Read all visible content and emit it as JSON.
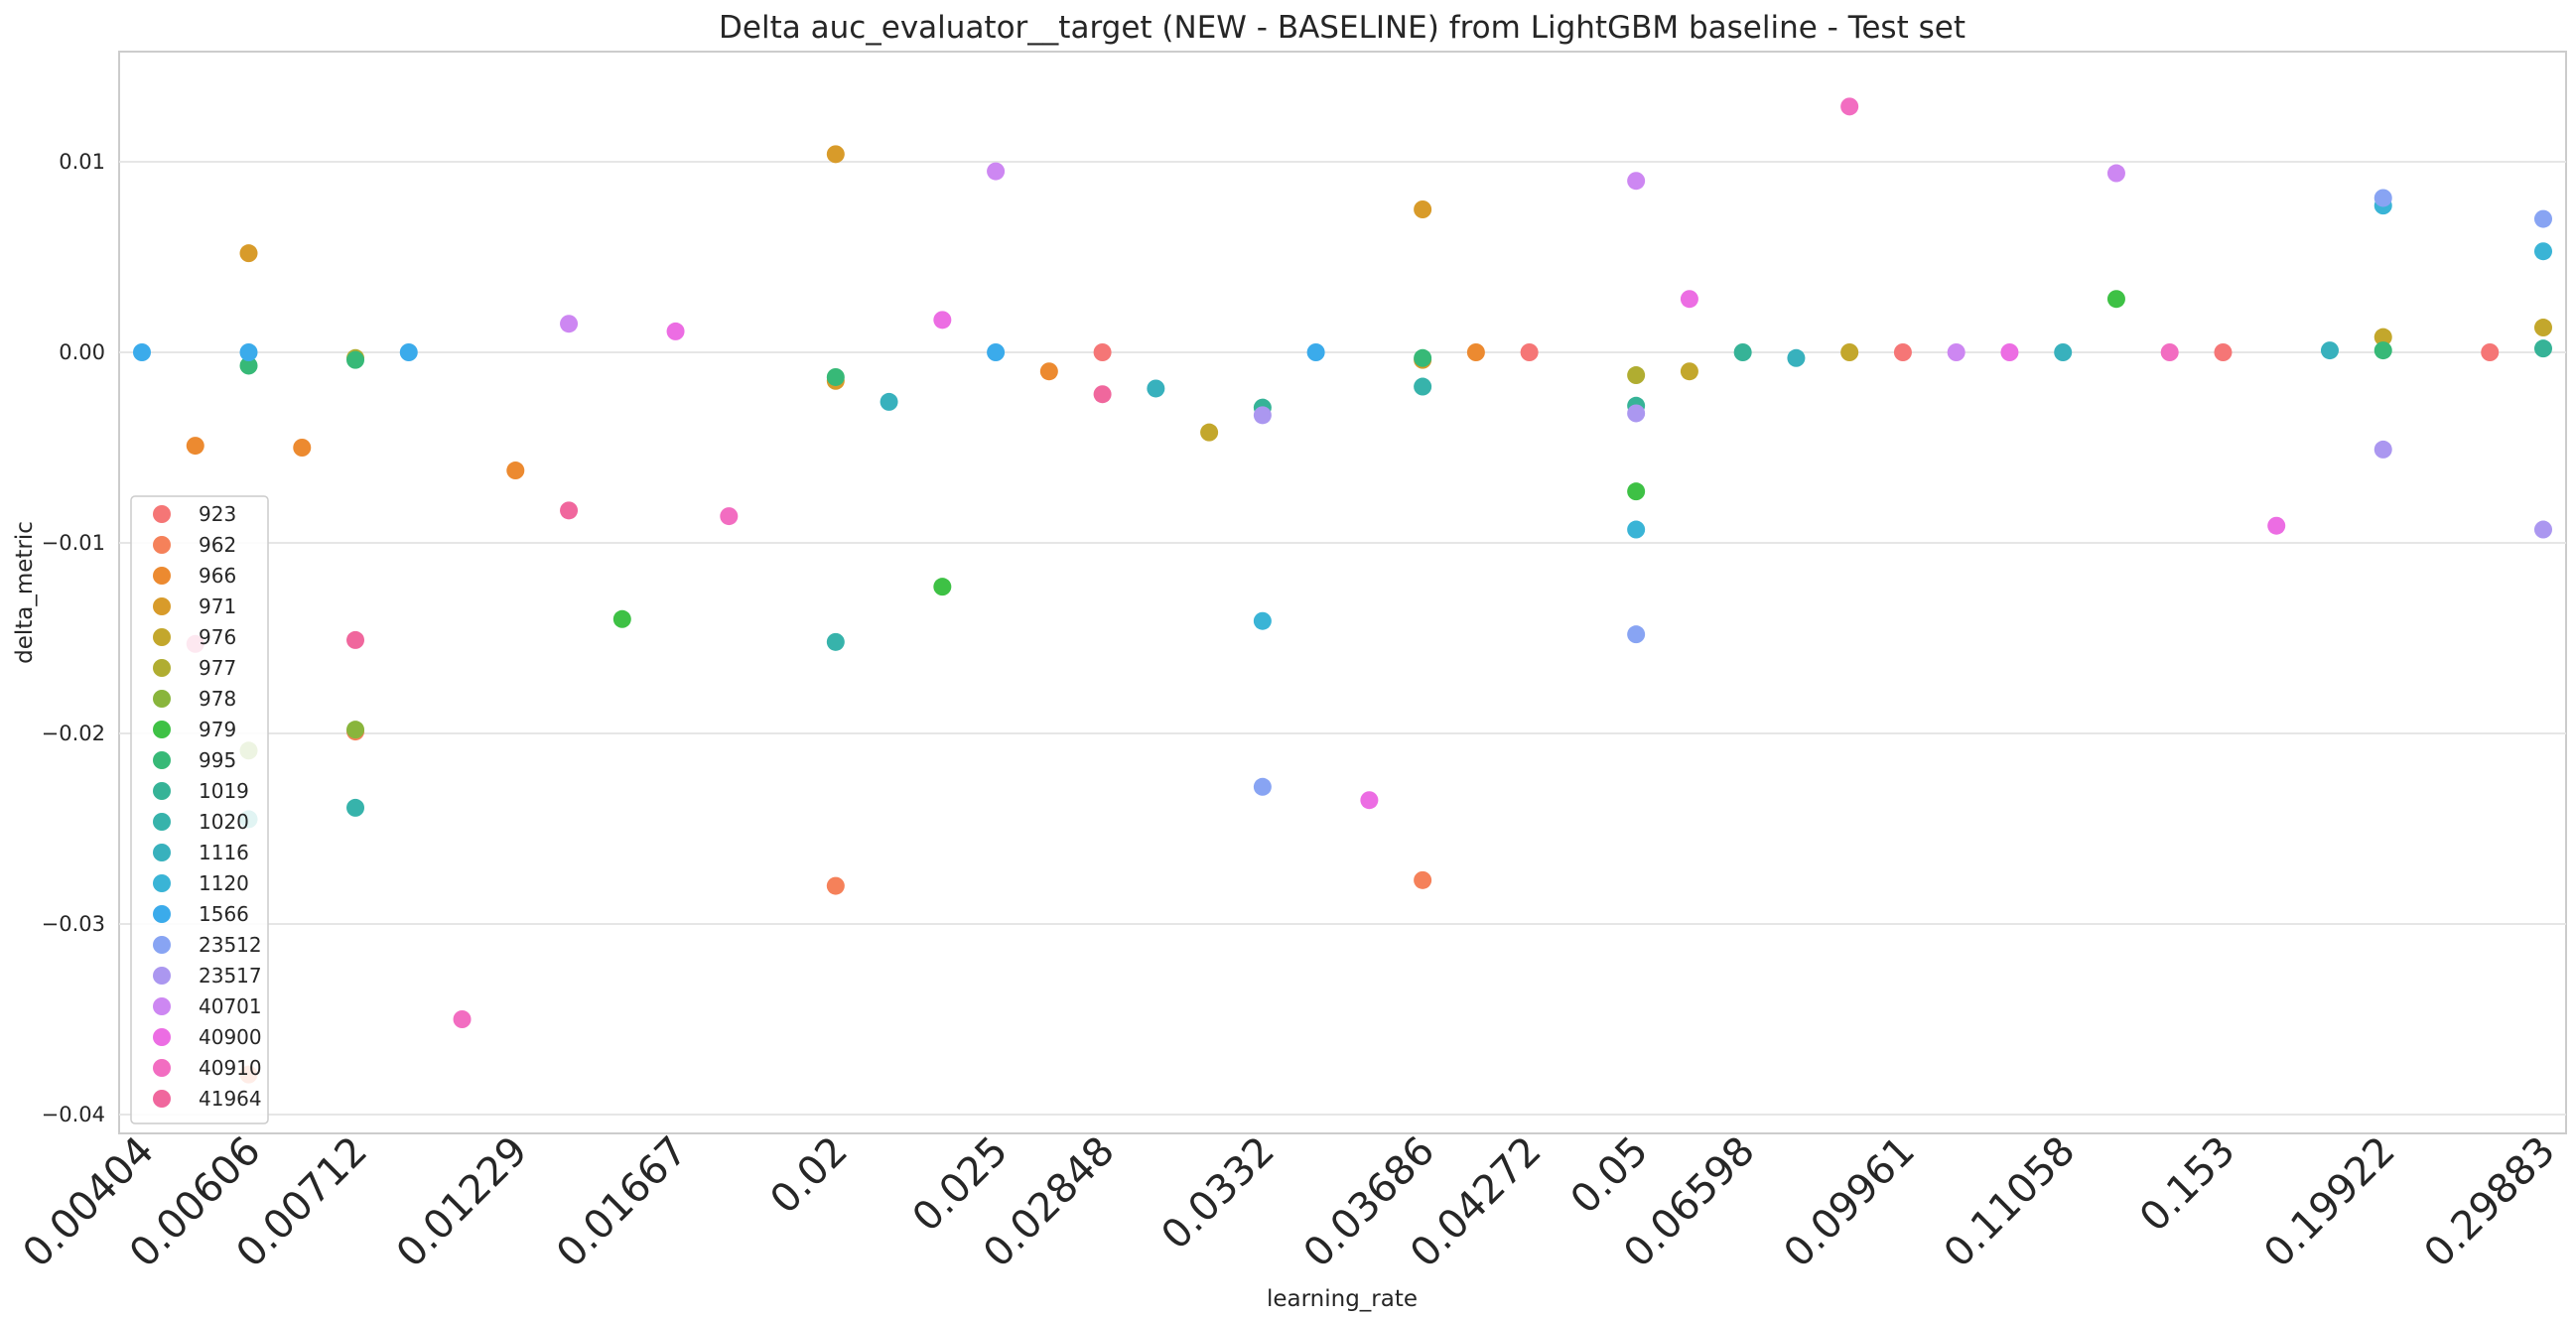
{
  "chart_data": {
    "type": "scatter",
    "title": "Delta auc_evaluator__target (NEW - BASELINE) from LightGBM baseline - Test set",
    "xlabel": "learning_rate",
    "ylabel": "delta_metric",
    "x_axis_kind": "categorical",
    "ylim": [
      -0.0408,
      0.0156
    ],
    "yticks": [
      -0.04,
      -0.03,
      -0.02,
      -0.01,
      0.0,
      0.01
    ],
    "ytick_labels": [
      "−0.04",
      "−0.03",
      "−0.02",
      "−0.01",
      "0.00",
      "0.01"
    ],
    "grid": "horizontal",
    "legend_placement": "lower-left",
    "x_tick_labels": [
      "0.00404",
      "0.00606",
      "0.00712",
      "0.01229",
      "0.01667",
      "0.02",
      "0.025",
      "0.02848",
      "0.0332",
      "0.03686",
      "0.04272",
      "0.05",
      "0.06598",
      "0.09961",
      "0.11058",
      "0.153",
      "0.19922",
      "0.29883"
    ],
    "x_categories": [
      "0.00404",
      "0.00505",
      "0.00606",
      "0.00656",
      "0.00712",
      "0.00800",
      "0.01000",
      "0.01229",
      "0.01400",
      "0.01550",
      "0.01667",
      "0.01800",
      "0.01900",
      "0.02",
      "0.02200",
      "0.02400",
      "0.025",
      "0.02700",
      "0.02848",
      "0.03000",
      "0.03200",
      "0.0332",
      "0.03500",
      "0.03600",
      "0.03686",
      "0.04000",
      "0.04272",
      "0.04500",
      "0.05",
      "0.05500",
      "0.06598",
      "0.07000",
      "0.08000",
      "0.09961",
      "0.10000",
      "0.10500",
      "0.11058",
      "0.12000",
      "0.13000",
      "0.153",
      "0.16000",
      "0.17000",
      "0.19922",
      "0.22000",
      "0.25000",
      "0.29883"
    ],
    "series": [
      {
        "name": "923",
        "color": "#f57676",
        "points": [
          [
            "0.02848",
            0.0
          ],
          [
            "0.04272",
            0.0
          ],
          [
            "0.09961",
            0.0
          ],
          [
            "0.153",
            0.0
          ],
          [
            "0.25000",
            0.0
          ]
        ]
      },
      {
        "name": "962",
        "color": "#f5815a",
        "points": [
          [
            "0.00606",
            -0.0379
          ],
          [
            "0.00712",
            -0.0199
          ],
          [
            "0.02",
            -0.028
          ],
          [
            "0.03686",
            -0.0277
          ]
        ]
      },
      {
        "name": "966",
        "color": "#ec8a30",
        "points": [
          [
            "0.00505",
            -0.0049
          ],
          [
            "0.00656",
            -0.005
          ],
          [
            "0.01229",
            -0.0062
          ],
          [
            "0.02700",
            -0.001
          ],
          [
            "0.04000",
            0.0
          ]
        ]
      },
      {
        "name": "971",
        "color": "#d89b2a",
        "points": [
          [
            "0.00606",
            0.0052
          ],
          [
            "0.02",
            0.0104
          ],
          [
            "0.02",
            -0.0015
          ],
          [
            "0.03686",
            0.0075
          ],
          [
            "0.03686",
            -0.0004
          ]
        ]
      },
      {
        "name": "976",
        "color": "#c3a72c",
        "points": [
          [
            "0.03200",
            -0.0042
          ],
          [
            "0.05500",
            -0.001
          ],
          [
            "0.08000",
            0.0
          ],
          [
            "0.19922",
            0.0008
          ],
          [
            "0.29883",
            0.0013
          ]
        ]
      },
      {
        "name": "977",
        "color": "#b0ad31",
        "points": [
          [
            "0.00712",
            -0.0003
          ],
          [
            "0.05",
            -0.0012
          ]
        ]
      },
      {
        "name": "978",
        "color": "#89b53c",
        "points": [
          [
            "0.00606",
            -0.0209
          ],
          [
            "0.00712",
            -0.0198
          ]
        ]
      },
      {
        "name": "979",
        "color": "#3ec145",
        "points": [
          [
            "0.01550",
            -0.014
          ],
          [
            "0.02400",
            -0.0123
          ],
          [
            "0.05",
            -0.0073
          ],
          [
            "0.12000",
            0.0028
          ]
        ]
      },
      {
        "name": "995",
        "color": "#37b977",
        "points": [
          [
            "0.00606",
            -0.0007
          ],
          [
            "0.00712",
            -0.0004
          ],
          [
            "0.02",
            -0.0013
          ],
          [
            "0.03686",
            -0.0003
          ],
          [
            "0.19922",
            0.0001
          ]
        ]
      },
      {
        "name": "1019",
        "color": "#36b397",
        "points": [
          [
            "0.0332",
            -0.0029
          ],
          [
            "0.05",
            -0.0028
          ],
          [
            "0.06598",
            0.0
          ],
          [
            "0.29883",
            0.0002
          ]
        ]
      },
      {
        "name": "1020",
        "color": "#37b3ab",
        "points": [
          [
            "0.00606",
            -0.0245
          ],
          [
            "0.00712",
            -0.0239
          ],
          [
            "0.02",
            -0.0152
          ],
          [
            "0.03686",
            -0.0018
          ]
        ]
      },
      {
        "name": "1116",
        "color": "#38b1bd",
        "points": [
          [
            "0.02200",
            -0.0026
          ],
          [
            "0.03000",
            -0.0019
          ],
          [
            "0.07000",
            -0.0003
          ],
          [
            "0.11058",
            0.0
          ],
          [
            "0.17000",
            0.0001
          ]
        ]
      },
      {
        "name": "1120",
        "color": "#3ab4d6",
        "points": [
          [
            "0.0332",
            -0.0141
          ],
          [
            "0.05",
            -0.0093
          ],
          [
            "0.19922",
            0.0077
          ],
          [
            "0.29883",
            0.0053
          ]
        ]
      },
      {
        "name": "1566",
        "color": "#3babeb",
        "points": [
          [
            "0.00404",
            0.0
          ],
          [
            "0.00606",
            0.0
          ],
          [
            "0.00800",
            0.0
          ],
          [
            "0.025",
            0.0
          ],
          [
            "0.03500",
            0.0
          ]
        ]
      },
      {
        "name": "23512",
        "color": "#88a4f3",
        "points": [
          [
            "0.0332",
            -0.0228
          ],
          [
            "0.05",
            -0.0148
          ],
          [
            "0.19922",
            0.0081
          ],
          [
            "0.29883",
            0.007
          ]
        ]
      },
      {
        "name": "23517",
        "color": "#ab97f0",
        "points": [
          [
            "0.0332",
            -0.0033
          ],
          [
            "0.05",
            -0.0032
          ],
          [
            "0.19922",
            -0.0051
          ],
          [
            "0.29883",
            -0.0093
          ]
        ]
      },
      {
        "name": "40701",
        "color": "#cd87f2",
        "points": [
          [
            "0.01400",
            0.0015
          ],
          [
            "0.025",
            0.0095
          ],
          [
            "0.05",
            0.009
          ],
          [
            "0.10000",
            0.0
          ],
          [
            "0.12000",
            0.0094
          ]
        ]
      },
      {
        "name": "40900",
        "color": "#ec6de3",
        "points": [
          [
            "0.01667",
            0.0011
          ],
          [
            "0.02400",
            0.0017
          ],
          [
            "0.03600",
            -0.0235
          ],
          [
            "0.05500",
            0.0028
          ],
          [
            "0.10500",
            0.0
          ],
          [
            "0.16000",
            -0.0091
          ]
        ]
      },
      {
        "name": "40910",
        "color": "#f26dc1",
        "points": [
          [
            "0.01000",
            -0.035
          ],
          [
            "0.01800",
            -0.0086
          ],
          [
            "0.08000",
            0.0129
          ],
          [
            "0.13000",
            0.0
          ]
        ]
      },
      {
        "name": "41964",
        "color": "#f0679d",
        "points": [
          [
            "0.00505",
            -0.0153
          ],
          [
            "0.00712",
            -0.0151
          ],
          [
            "0.01400",
            -0.0083
          ],
          [
            "0.02848",
            -0.0022
          ]
        ]
      }
    ]
  }
}
